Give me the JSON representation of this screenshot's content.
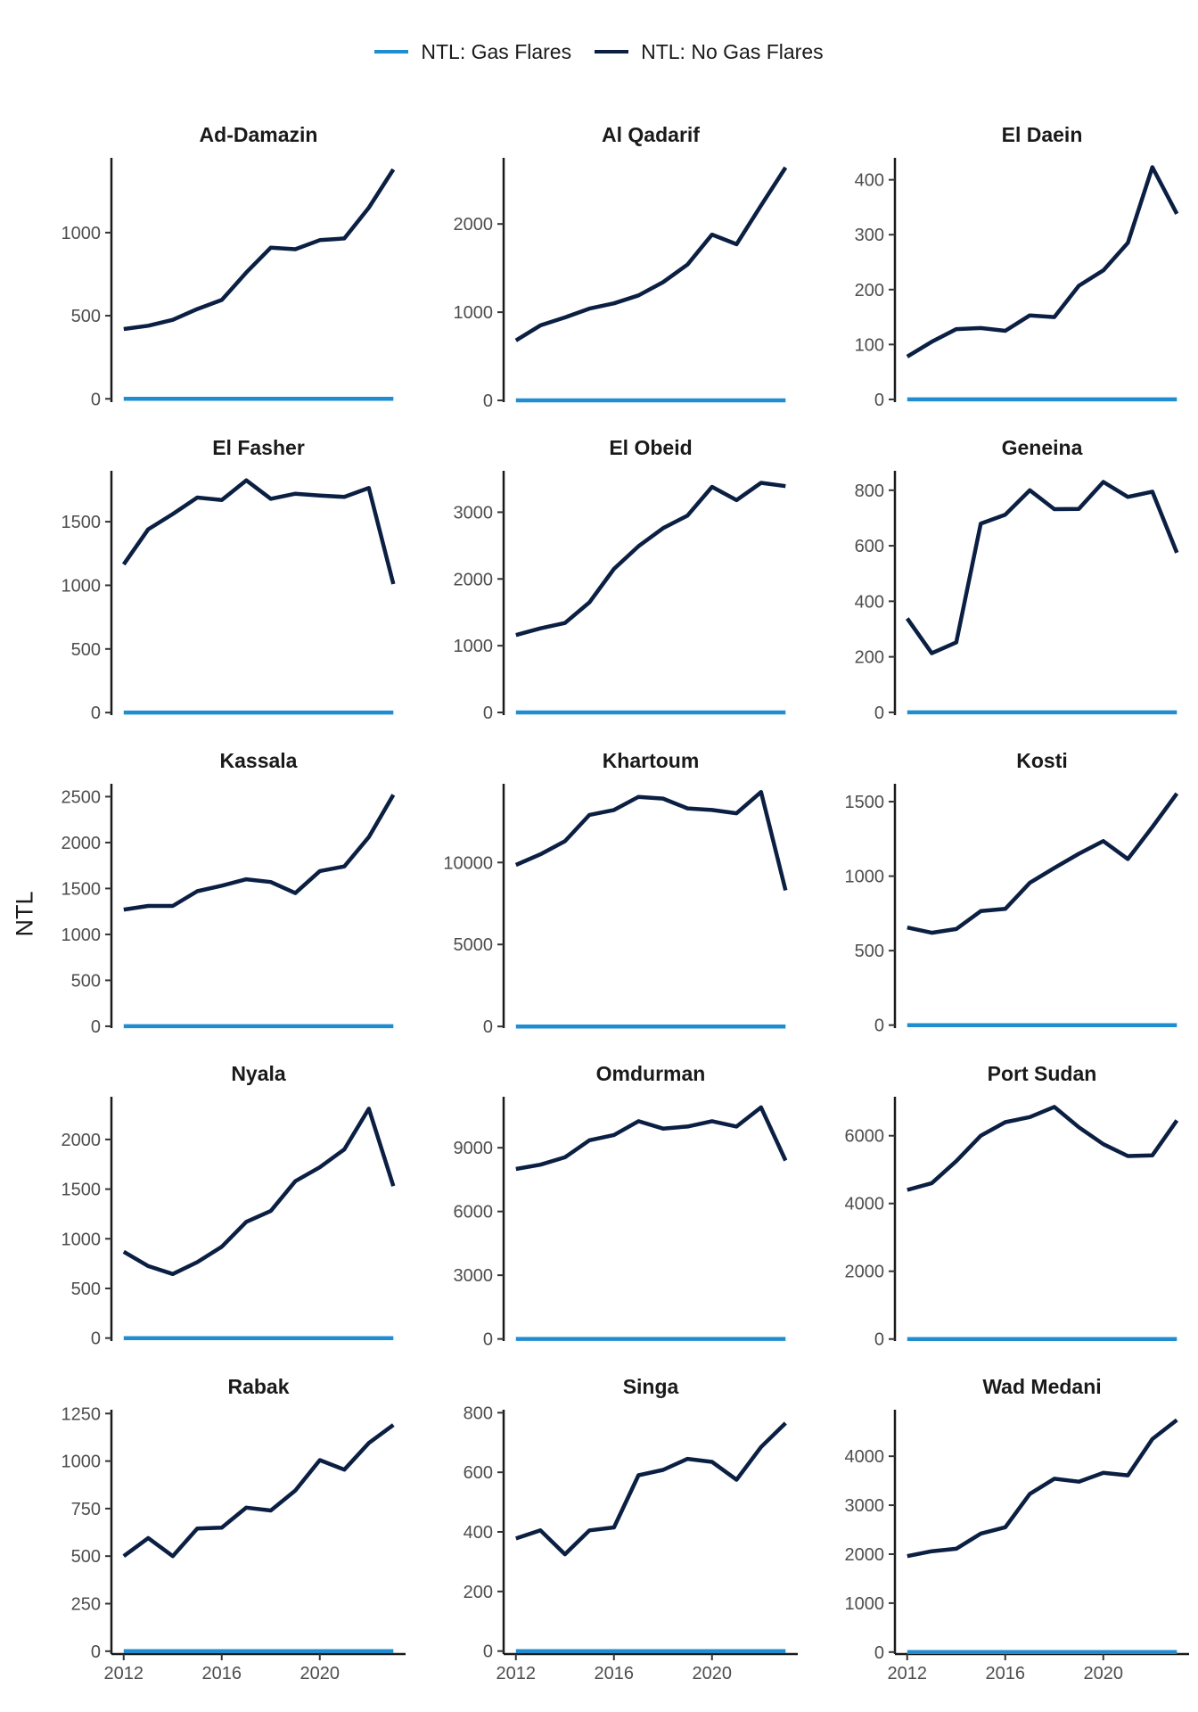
{
  "legend": [
    {
      "label": "NTL: Gas Flares",
      "color": "#1f8dd0"
    },
    {
      "label": "NTL: No Gas Flares",
      "color": "#0b1f43"
    }
  ],
  "chart_data": {
    "type": "line",
    "ylabel": "NTL",
    "xlabel": "",
    "x": [
      2012,
      2013,
      2014,
      2015,
      2016,
      2017,
      2018,
      2019,
      2020,
      2021,
      2022,
      2023
    ],
    "xlim": [
      2011.5,
      2023.5
    ],
    "xticks": [
      2012,
      2016,
      2020
    ],
    "series_names": [
      "NTL: Gas Flares",
      "NTL: No Gas Flares"
    ],
    "colors": {
      "gas": "#1f8dd0",
      "nogas": "#0b1f43"
    },
    "grid": false,
    "legend_position": "top",
    "panels": [
      {
        "title": "Ad-Damazin",
        "ylim": [
          -20,
          1450
        ],
        "yticks": [
          0,
          500,
          1000
        ],
        "gas": [
          0,
          0,
          0,
          0,
          0,
          0,
          0,
          0,
          0,
          0,
          0,
          0
        ],
        "nogas": [
          420,
          440,
          475,
          540,
          595,
          760,
          910,
          900,
          955,
          965,
          1150,
          1380
        ]
      },
      {
        "title": "Al Qadarif",
        "ylim": [
          -20,
          2750
        ],
        "yticks": [
          0,
          1000,
          2000
        ],
        "gas": [
          0,
          0,
          0,
          0,
          0,
          0,
          0,
          0,
          0,
          0,
          0,
          0
        ],
        "nogas": [
          680,
          850,
          940,
          1040,
          1100,
          1190,
          1340,
          1540,
          1880,
          1770,
          2210,
          2640
        ]
      },
      {
        "title": "El Daein",
        "ylim": [
          -5,
          440
        ],
        "yticks": [
          0,
          100,
          200,
          300,
          400
        ],
        "gas": [
          0,
          0,
          0,
          0,
          0,
          0,
          0,
          0,
          0,
          0,
          0,
          0
        ],
        "nogas": [
          78,
          105,
          128,
          130,
          125,
          153,
          150,
          207,
          235,
          285,
          423,
          338
        ]
      },
      {
        "title": "El Fasher",
        "ylim": [
          -20,
          1900
        ],
        "yticks": [
          0,
          500,
          1000,
          1500
        ],
        "gas": [
          0,
          0,
          0,
          0,
          0,
          0,
          0,
          0,
          0,
          0,
          0,
          0
        ],
        "nogas": [
          1165,
          1440,
          1560,
          1690,
          1670,
          1825,
          1680,
          1720,
          1705,
          1695,
          1765,
          1010
        ]
      },
      {
        "title": "El Obeid",
        "ylim": [
          -40,
          3620
        ],
        "yticks": [
          0,
          1000,
          2000,
          3000
        ],
        "gas": [
          0,
          0,
          0,
          0,
          0,
          0,
          0,
          0,
          0,
          0,
          0,
          0
        ],
        "nogas": [
          1160,
          1260,
          1340,
          1650,
          2150,
          2490,
          2760,
          2950,
          3380,
          3180,
          3440,
          3390
        ]
      },
      {
        "title": "Geneina",
        "ylim": [
          -10,
          870
        ],
        "yticks": [
          0,
          200,
          400,
          600,
          800
        ],
        "gas": [
          0,
          0,
          0,
          0,
          0,
          0,
          0,
          0,
          0,
          0,
          0,
          0
        ],
        "nogas": [
          338,
          213,
          252,
          680,
          712,
          800,
          732,
          733,
          830,
          776,
          795,
          575
        ]
      },
      {
        "title": "Kassala",
        "ylim": [
          -20,
          2640
        ],
        "yticks": [
          0,
          500,
          1000,
          1500,
          2000,
          2500
        ],
        "gas": [
          0,
          0,
          0,
          0,
          0,
          0,
          0,
          0,
          0,
          0,
          0,
          0
        ],
        "nogas": [
          1270,
          1310,
          1310,
          1470,
          1530,
          1600,
          1570,
          1450,
          1690,
          1740,
          2060,
          2520
        ]
      },
      {
        "title": "Khartoum",
        "ylim": [
          -100,
          14800
        ],
        "yticks": [
          0,
          5000,
          10000
        ],
        "gas": [
          0,
          0,
          0,
          0,
          0,
          0,
          0,
          0,
          0,
          0,
          0,
          0
        ],
        "nogas": [
          9850,
          10500,
          11300,
          12900,
          13200,
          14000,
          13900,
          13300,
          13200,
          13000,
          14300,
          8300
        ]
      },
      {
        "title": "Kosti",
        "ylim": [
          -20,
          1620
        ],
        "yticks": [
          0,
          500,
          1000,
          1500
        ],
        "gas": [
          0,
          0,
          0,
          0,
          0,
          0,
          0,
          0,
          0,
          0,
          0,
          0
        ],
        "nogas": [
          655,
          620,
          645,
          765,
          780,
          955,
          1055,
          1150,
          1235,
          1115,
          1330,
          1555
        ]
      },
      {
        "title": "Nyala",
        "ylim": [
          -30,
          2430
        ],
        "yticks": [
          0,
          500,
          1000,
          1500,
          2000
        ],
        "gas": [
          0,
          0,
          0,
          0,
          0,
          0,
          0,
          0,
          0,
          0,
          0,
          0
        ],
        "nogas": [
          870,
          725,
          645,
          765,
          920,
          1170,
          1280,
          1580,
          1720,
          1900,
          2310,
          1530
        ]
      },
      {
        "title": "Omdurman",
        "ylim": [
          -100,
          11400
        ],
        "yticks": [
          0,
          3000,
          6000,
          9000
        ],
        "gas": [
          0,
          0,
          0,
          0,
          0,
          0,
          0,
          0,
          0,
          0,
          0,
          0
        ],
        "nogas": [
          8000,
          8200,
          8550,
          9350,
          9600,
          10250,
          9900,
          10000,
          10250,
          10000,
          10900,
          8400
        ]
      },
      {
        "title": "Port Sudan",
        "ylim": [
          -60,
          7150
        ],
        "yticks": [
          0,
          2000,
          4000,
          6000
        ],
        "gas": [
          0,
          0,
          0,
          0,
          0,
          0,
          0,
          0,
          0,
          0,
          0,
          0
        ],
        "nogas": [
          4400,
          4600,
          5250,
          6000,
          6400,
          6550,
          6850,
          6250,
          5750,
          5400,
          5420,
          6450
        ]
      },
      {
        "title": "Rabak",
        "ylim": [
          -15,
          1270
        ],
        "yticks": [
          0,
          250,
          500,
          750,
          1000,
          1250
        ],
        "gas": [
          0,
          0,
          0,
          0,
          0,
          0,
          0,
          0,
          0,
          0,
          0,
          0
        ],
        "nogas": [
          500,
          595,
          500,
          645,
          650,
          755,
          740,
          845,
          1005,
          955,
          1095,
          1190
        ]
      },
      {
        "title": "Singa",
        "ylim": [
          -10,
          810
        ],
        "yticks": [
          0,
          200,
          400,
          600,
          800
        ],
        "gas": [
          0,
          0,
          0,
          0,
          0,
          0,
          0,
          0,
          0,
          0,
          0,
          0
        ],
        "nogas": [
          378,
          405,
          325,
          405,
          415,
          590,
          608,
          645,
          635,
          575,
          685,
          765
        ]
      },
      {
        "title": "Wad Medani",
        "ylim": [
          -40,
          4950
        ],
        "yticks": [
          0,
          1000,
          2000,
          3000,
          4000
        ],
        "gas": [
          0,
          0,
          0,
          0,
          0,
          0,
          0,
          0,
          0,
          0,
          0,
          0
        ],
        "nogas": [
          1960,
          2060,
          2110,
          2420,
          2550,
          3230,
          3540,
          3480,
          3660,
          3610,
          4350,
          4740
        ]
      }
    ]
  }
}
